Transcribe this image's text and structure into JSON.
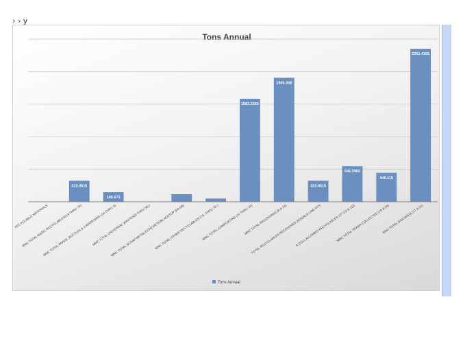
{
  "corner_mark": "› › y",
  "colors": {
    "bar": "#6a8fc0",
    "grid": "#bfbfbf",
    "axis": "#7f7f7f",
    "title": "#404040",
    "bar_label": "#ffffff"
  },
  "chart_data": {
    "type": "bar",
    "title": "Tons Annual",
    "xlabel": "",
    "ylabel": "",
    "ylim": [
      0,
      2500
    ],
    "grid": true,
    "legend": "bottom",
    "categories": [
      "RECYCLABLE MATERIALS",
      "MNC TOTAL BASIC RECYCLABLES(1A THRU 7E)",
      "MNC TOTAL PAPER, BOTTLES & CARDBOARD (1A THRU 3)",
      "MNC TOTAL UNIVERSAL WASTES(5 THRU 5B.)",
      "MNC TOTAL SCRAP METAL/CONCRETE/BLACKTOP (6A-6B)",
      "MNC TOTAL OTHER RECYCLABLES (7A. THRU 7E.)",
      "MNC TOTAL COMPOSTING (11 THRU 15)",
      "MNC TOTAL RECOVERED (8 & 16)",
      "TOTAL RECYCLABLES RECOVERED (EQUALS LINE 8??)",
      "S COLL ALLOWED RECYCLABLES (17 (13 & 15))",
      "MNC TOTAL TRASH COLLECTED (19 & 20)",
      "MNC TOTAL DISCARDS (17 & 21)"
    ],
    "series": [
      {
        "name": "Tons Annual",
        "values": [
          0,
          323.0515,
          146.675,
          1.2975,
          115.455,
          49.835,
          1583.2565,
          1906.308,
          323.0515,
          546.2965,
          445.115,
          2351.4165
        ],
        "labels": [
          "",
          "323.0515",
          "146.675",
          "1.2975",
          "115.455",
          "49.835",
          "1583.2565",
          "1906.308",
          "323.0515",
          "546.2965",
          "445.115",
          "2351.4165"
        ]
      }
    ]
  }
}
